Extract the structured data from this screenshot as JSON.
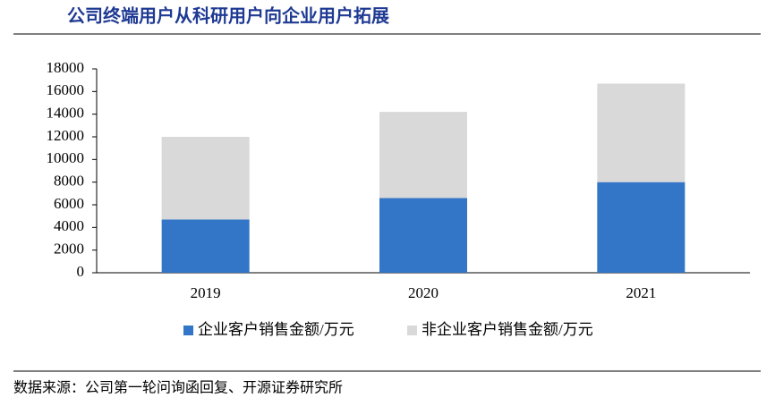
{
  "chart_data": {
    "type": "stacked_bar",
    "title": "公司终端用户从科研用户向企业用户拓展",
    "categories": [
      "2019",
      "2020",
      "2021"
    ],
    "series": [
      {
        "name": "企业客户销售金额/万元",
        "color": "#3375c6",
        "values": [
          4700,
          6600,
          8000
        ]
      },
      {
        "name": "非企业客户销售金额/万元",
        "color": "#d9d9d9",
        "values": [
          7300,
          7600,
          8700
        ]
      }
    ],
    "ylim": [
      0,
      18000
    ],
    "yticks": [
      0,
      2000,
      4000,
      6000,
      8000,
      10000,
      12000,
      14000,
      16000,
      18000
    ],
    "source": "数据来源：公司第一轮问询函回复、开源证券研究所"
  }
}
